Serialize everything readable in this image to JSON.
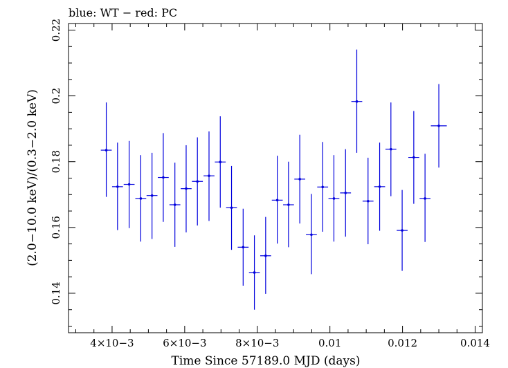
{
  "chart_data": {
    "type": "scatter",
    "title": "blue: WT − red: PC",
    "xlabel": "Time Since 57189.0 MJD (days)",
    "ylabel": "(2.0−10.0 keV)/(0.3−2.0 keV)",
    "xlim": [
      0.0028,
      0.0142
    ],
    "ylim": [
      0.128,
      0.222
    ],
    "x_ticks": [
      {
        "value": 0.004,
        "label": "4×10−3"
      },
      {
        "value": 0.006,
        "label": "6×10−3"
      },
      {
        "value": 0.008,
        "label": "8×10−3"
      },
      {
        "value": 0.01,
        "label": "0.01"
      },
      {
        "value": 0.012,
        "label": "0.012"
      },
      {
        "value": 0.014,
        "label": "0.014"
      }
    ],
    "y_ticks": [
      {
        "value": 0.14,
        "label": "0.14"
      },
      {
        "value": 0.16,
        "label": "0.16"
      },
      {
        "value": 0.18,
        "label": "0.18"
      },
      {
        "value": 0.2,
        "label": "0.2"
      },
      {
        "value": 0.22,
        "label": "0.22"
      }
    ],
    "grid": false,
    "series": [
      {
        "color": "#0000dd",
        "points": [
          {
            "x": 0.00384,
            "xerr": 0.00015,
            "y": 0.1835,
            "ylo": 0.1693,
            "yhi": 0.198
          },
          {
            "x": 0.00415,
            "xerr": 0.00015,
            "y": 0.1724,
            "ylo": 0.1592,
            "yhi": 0.1858
          },
          {
            "x": 0.00447,
            "xerr": 0.00015,
            "y": 0.1731,
            "ylo": 0.1598,
            "yhi": 0.1863
          },
          {
            "x": 0.00479,
            "xerr": 0.00015,
            "y": 0.1688,
            "ylo": 0.1557,
            "yhi": 0.182
          },
          {
            "x": 0.0051,
            "xerr": 0.00015,
            "y": 0.1697,
            "ylo": 0.1565,
            "yhi": 0.1827
          },
          {
            "x": 0.00541,
            "xerr": 0.00015,
            "y": 0.1752,
            "ylo": 0.1617,
            "yhi": 0.1887
          },
          {
            "x": 0.00573,
            "xerr": 0.00015,
            "y": 0.1669,
            "ylo": 0.1541,
            "yhi": 0.1797
          },
          {
            "x": 0.00604,
            "xerr": 0.00015,
            "y": 0.1718,
            "ylo": 0.1585,
            "yhi": 0.185
          },
          {
            "x": 0.00635,
            "xerr": 0.00015,
            "y": 0.174,
            "ylo": 0.1606,
            "yhi": 0.1874
          },
          {
            "x": 0.00667,
            "xerr": 0.00015,
            "y": 0.1757,
            "ylo": 0.162,
            "yhi": 0.1892
          },
          {
            "x": 0.00698,
            "xerr": 0.00015,
            "y": 0.1799,
            "ylo": 0.166,
            "yhi": 0.1938
          },
          {
            "x": 0.00729,
            "xerr": 0.00015,
            "y": 0.166,
            "ylo": 0.1532,
            "yhi": 0.1787
          },
          {
            "x": 0.00761,
            "xerr": 0.00015,
            "y": 0.154,
            "ylo": 0.1423,
            "yhi": 0.1657
          },
          {
            "x": 0.00792,
            "xerr": 0.00015,
            "y": 0.1463,
            "ylo": 0.135,
            "yhi": 0.1576
          },
          {
            "x": 0.00823,
            "xerr": 0.00015,
            "y": 0.1514,
            "ylo": 0.1398,
            "yhi": 0.1632
          },
          {
            "x": 0.00855,
            "xerr": 0.00015,
            "y": 0.1683,
            "ylo": 0.1551,
            "yhi": 0.1818
          },
          {
            "x": 0.00886,
            "xerr": 0.00015,
            "y": 0.1669,
            "ylo": 0.154,
            "yhi": 0.18
          },
          {
            "x": 0.00917,
            "xerr": 0.00015,
            "y": 0.1747,
            "ylo": 0.1612,
            "yhi": 0.1882
          },
          {
            "x": 0.00949,
            "xerr": 0.00015,
            "y": 0.1578,
            "ylo": 0.1458,
            "yhi": 0.1702
          },
          {
            "x": 0.0098,
            "xerr": 0.00015,
            "y": 0.1723,
            "ylo": 0.1587,
            "yhi": 0.186
          },
          {
            "x": 0.01011,
            "xerr": 0.00015,
            "y": 0.1688,
            "ylo": 0.1557,
            "yhi": 0.182
          },
          {
            "x": 0.01043,
            "xerr": 0.00015,
            "y": 0.1705,
            "ylo": 0.1572,
            "yhi": 0.1838
          },
          {
            "x": 0.01074,
            "xerr": 0.00015,
            "y": 0.1983,
            "ylo": 0.1827,
            "yhi": 0.2141
          },
          {
            "x": 0.01105,
            "xerr": 0.00015,
            "y": 0.168,
            "ylo": 0.1549,
            "yhi": 0.1812
          },
          {
            "x": 0.01137,
            "xerr": 0.00015,
            "y": 0.1724,
            "ylo": 0.159,
            "yhi": 0.1858
          },
          {
            "x": 0.01168,
            "xerr": 0.00015,
            "y": 0.1838,
            "ylo": 0.1695,
            "yhi": 0.198
          },
          {
            "x": 0.01199,
            "xerr": 0.00015,
            "y": 0.1591,
            "ylo": 0.1468,
            "yhi": 0.1714
          },
          {
            "x": 0.01231,
            "xerr": 0.00015,
            "y": 0.1813,
            "ylo": 0.1672,
            "yhi": 0.1954
          },
          {
            "x": 0.01262,
            "xerr": 0.00015,
            "y": 0.1688,
            "ylo": 0.1556,
            "yhi": 0.1824
          },
          {
            "x": 0.013,
            "xerr": 0.00022,
            "y": 0.1909,
            "ylo": 0.1782,
            "yhi": 0.2036
          }
        ]
      }
    ]
  }
}
